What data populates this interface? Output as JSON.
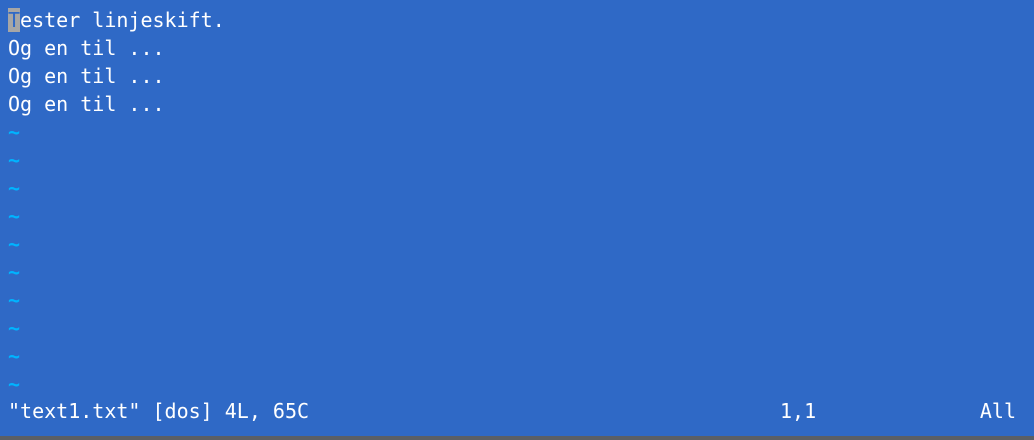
{
  "editor": {
    "cursor_char": "T",
    "lines": [
      "ester linjeskift.",
      "Og en til ...",
      "Og en til ...",
      "Og en til ..."
    ],
    "tilde": "~"
  },
  "statusline": {
    "file_info": "\"text1.txt\" [dos] 4L, 65C",
    "position": "1,1",
    "scroll": "All"
  },
  "colors": {
    "background": "#2f69c6",
    "text": "#ffffff",
    "tilde": "#00b4ff",
    "cursor": "#a6a6a6"
  }
}
